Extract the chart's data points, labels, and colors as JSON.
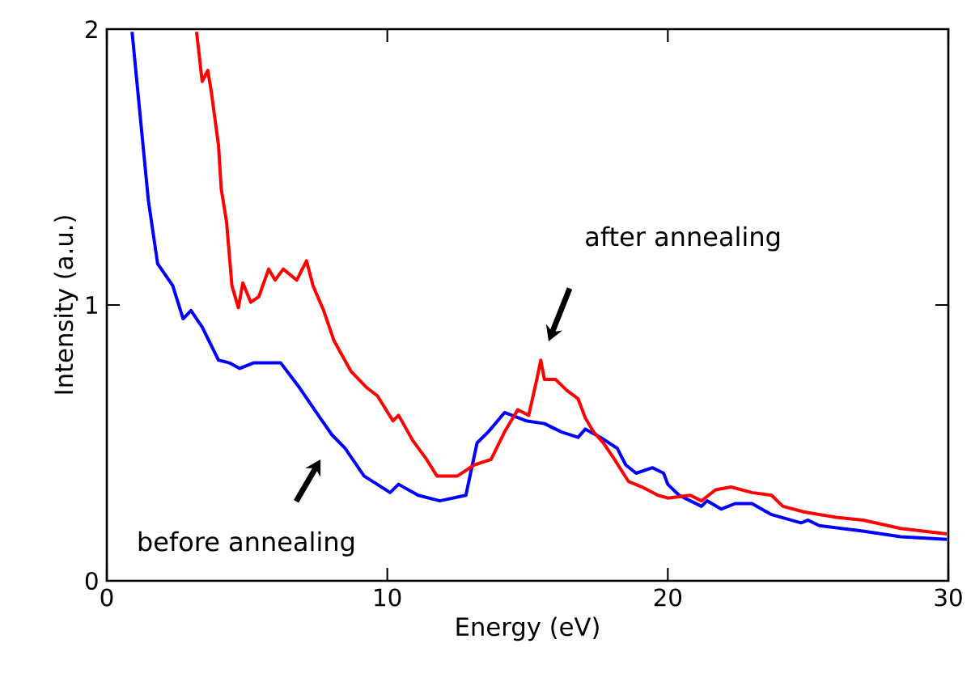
{
  "chart_data": {
    "type": "line",
    "xlabel": "Energy (eV)",
    "ylabel": "Intensity (a.u.)",
    "xlim": [
      0,
      30
    ],
    "ylim": [
      0,
      2
    ],
    "xticks": [
      0,
      10,
      20,
      30
    ],
    "yticks": [
      0,
      1,
      2
    ],
    "grid": false,
    "marker": "none",
    "line_style": "solid",
    "series": [
      {
        "color": "#0000ff",
        "x": [
          0.9,
          1.48,
          1.81,
          2.35,
          2.72,
          3.0,
          3.4,
          3.98,
          4.37,
          4.74,
          5.23,
          6.2,
          6.87,
          7.54,
          8.02,
          8.5,
          9.17,
          10.1,
          10.4,
          11.1,
          11.87,
          12.8,
          13.2,
          13.6,
          14.18,
          14.95,
          15.6,
          16.2,
          16.8,
          17.06,
          17.6,
          18.2,
          18.5,
          18.87,
          19.45,
          19.85,
          20.0,
          20.4,
          21.2,
          21.4,
          21.9,
          22.4,
          23.0,
          23.7,
          24.75,
          25.0,
          25.4,
          26.95,
          28.3,
          29.95
        ],
        "values": [
          1.99,
          1.38,
          1.15,
          1.07,
          0.95,
          0.98,
          0.92,
          0.8,
          0.79,
          0.77,
          0.79,
          0.79,
          0.7,
          0.6,
          0.53,
          0.48,
          0.38,
          0.32,
          0.35,
          0.31,
          0.29,
          0.31,
          0.5,
          0.54,
          0.61,
          0.58,
          0.57,
          0.54,
          0.52,
          0.55,
          0.52,
          0.48,
          0.42,
          0.39,
          0.41,
          0.39,
          0.35,
          0.31,
          0.27,
          0.29,
          0.26,
          0.28,
          0.28,
          0.24,
          0.21,
          0.22,
          0.2,
          0.18,
          0.16,
          0.15
        ]
      },
      {
        "color": "#ff0000",
        "x": [
          3.2,
          3.4,
          3.6,
          3.73,
          3.98,
          4.08,
          4.27,
          4.46,
          4.69,
          4.85,
          5.13,
          5.42,
          5.77,
          6.0,
          6.29,
          6.77,
          7.12,
          7.35,
          7.73,
          8.1,
          8.7,
          9.27,
          9.65,
          10.2,
          10.4,
          10.9,
          11.4,
          11.77,
          12.5,
          13.1,
          13.7,
          14.18,
          14.65,
          15.04,
          15.33,
          15.47,
          15.6,
          16.0,
          16.4,
          16.8,
          17.06,
          17.35,
          17.7,
          18.1,
          18.6,
          19.08,
          19.65,
          20.0,
          20.8,
          21.2,
          21.7,
          22.25,
          23.0,
          23.7,
          24.1,
          24.85,
          26.0,
          26.97,
          28.3,
          29.95
        ],
        "values": [
          1.99,
          1.81,
          1.85,
          1.77,
          1.58,
          1.42,
          1.3,
          1.07,
          0.99,
          1.08,
          1.01,
          1.03,
          1.13,
          1.09,
          1.13,
          1.09,
          1.16,
          1.07,
          0.98,
          0.87,
          0.76,
          0.7,
          0.67,
          0.58,
          0.6,
          0.51,
          0.44,
          0.38,
          0.38,
          0.42,
          0.44,
          0.54,
          0.62,
          0.6,
          0.73,
          0.8,
          0.73,
          0.73,
          0.69,
          0.66,
          0.59,
          0.54,
          0.5,
          0.44,
          0.36,
          0.34,
          0.31,
          0.3,
          0.31,
          0.29,
          0.33,
          0.34,
          0.32,
          0.31,
          0.27,
          0.25,
          0.23,
          0.22,
          0.19,
          0.17
        ]
      }
    ],
    "annotations": [
      "after annealing",
      "before annealing"
    ]
  }
}
